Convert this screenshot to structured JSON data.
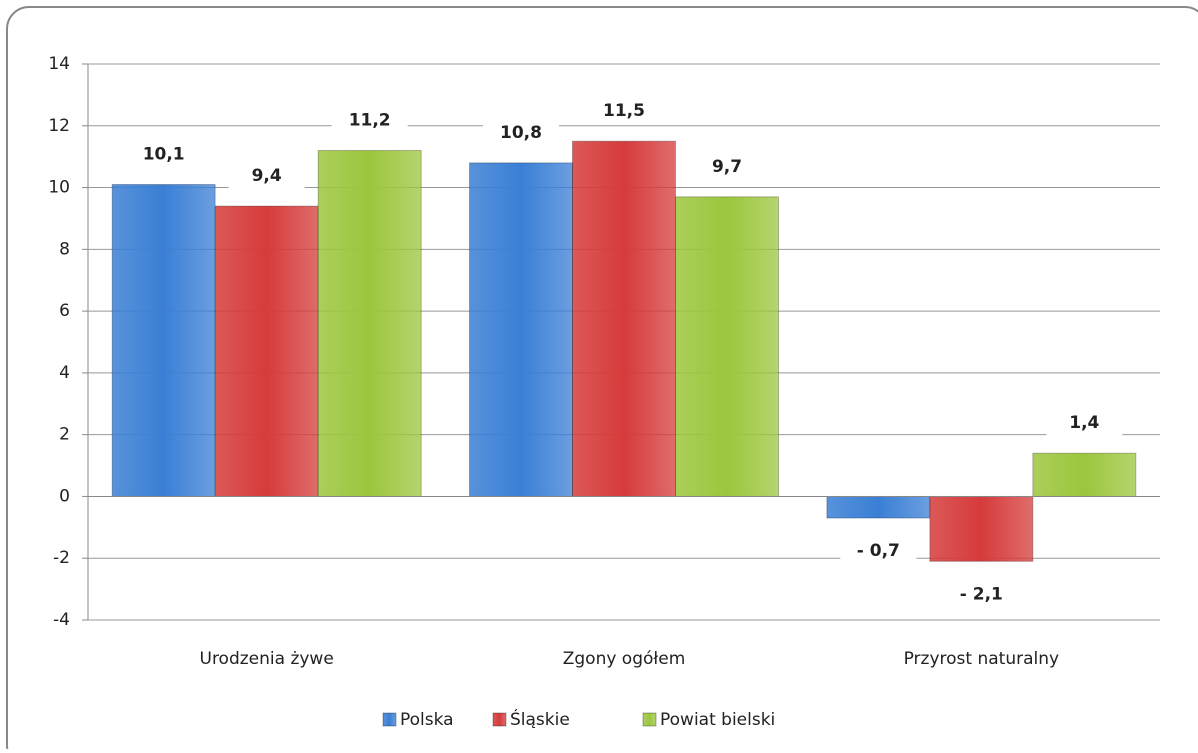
{
  "chart_data": {
    "type": "bar",
    "categories": [
      "Urodzenia żywe",
      "Zgony ogółem",
      "Przyrost naturalny"
    ],
    "series": [
      {
        "name": "Polska",
        "color": "#3a7fd5",
        "values": [
          10.1,
          10.8,
          -0.7
        ],
        "value_labels": [
          "10,1",
          "10,8",
          "- 0,7"
        ]
      },
      {
        "name": "Śląskie",
        "color": "#d63b3b",
        "values": [
          9.4,
          11.5,
          -2.1
        ],
        "value_labels": [
          "9,4",
          "11,5",
          "- 2,1"
        ]
      },
      {
        "name": "Powiat bielski",
        "color": "#9cc63d",
        "values": [
          11.2,
          9.7,
          1.4
        ],
        "value_labels": [
          "11,2",
          "9,7",
          "1,4"
        ]
      }
    ],
    "ylim": [
      -4,
      14
    ],
    "yticks": [
      -4,
      -2,
      0,
      2,
      4,
      6,
      8,
      10,
      12,
      14
    ],
    "grid": true,
    "legend": "bottom"
  }
}
